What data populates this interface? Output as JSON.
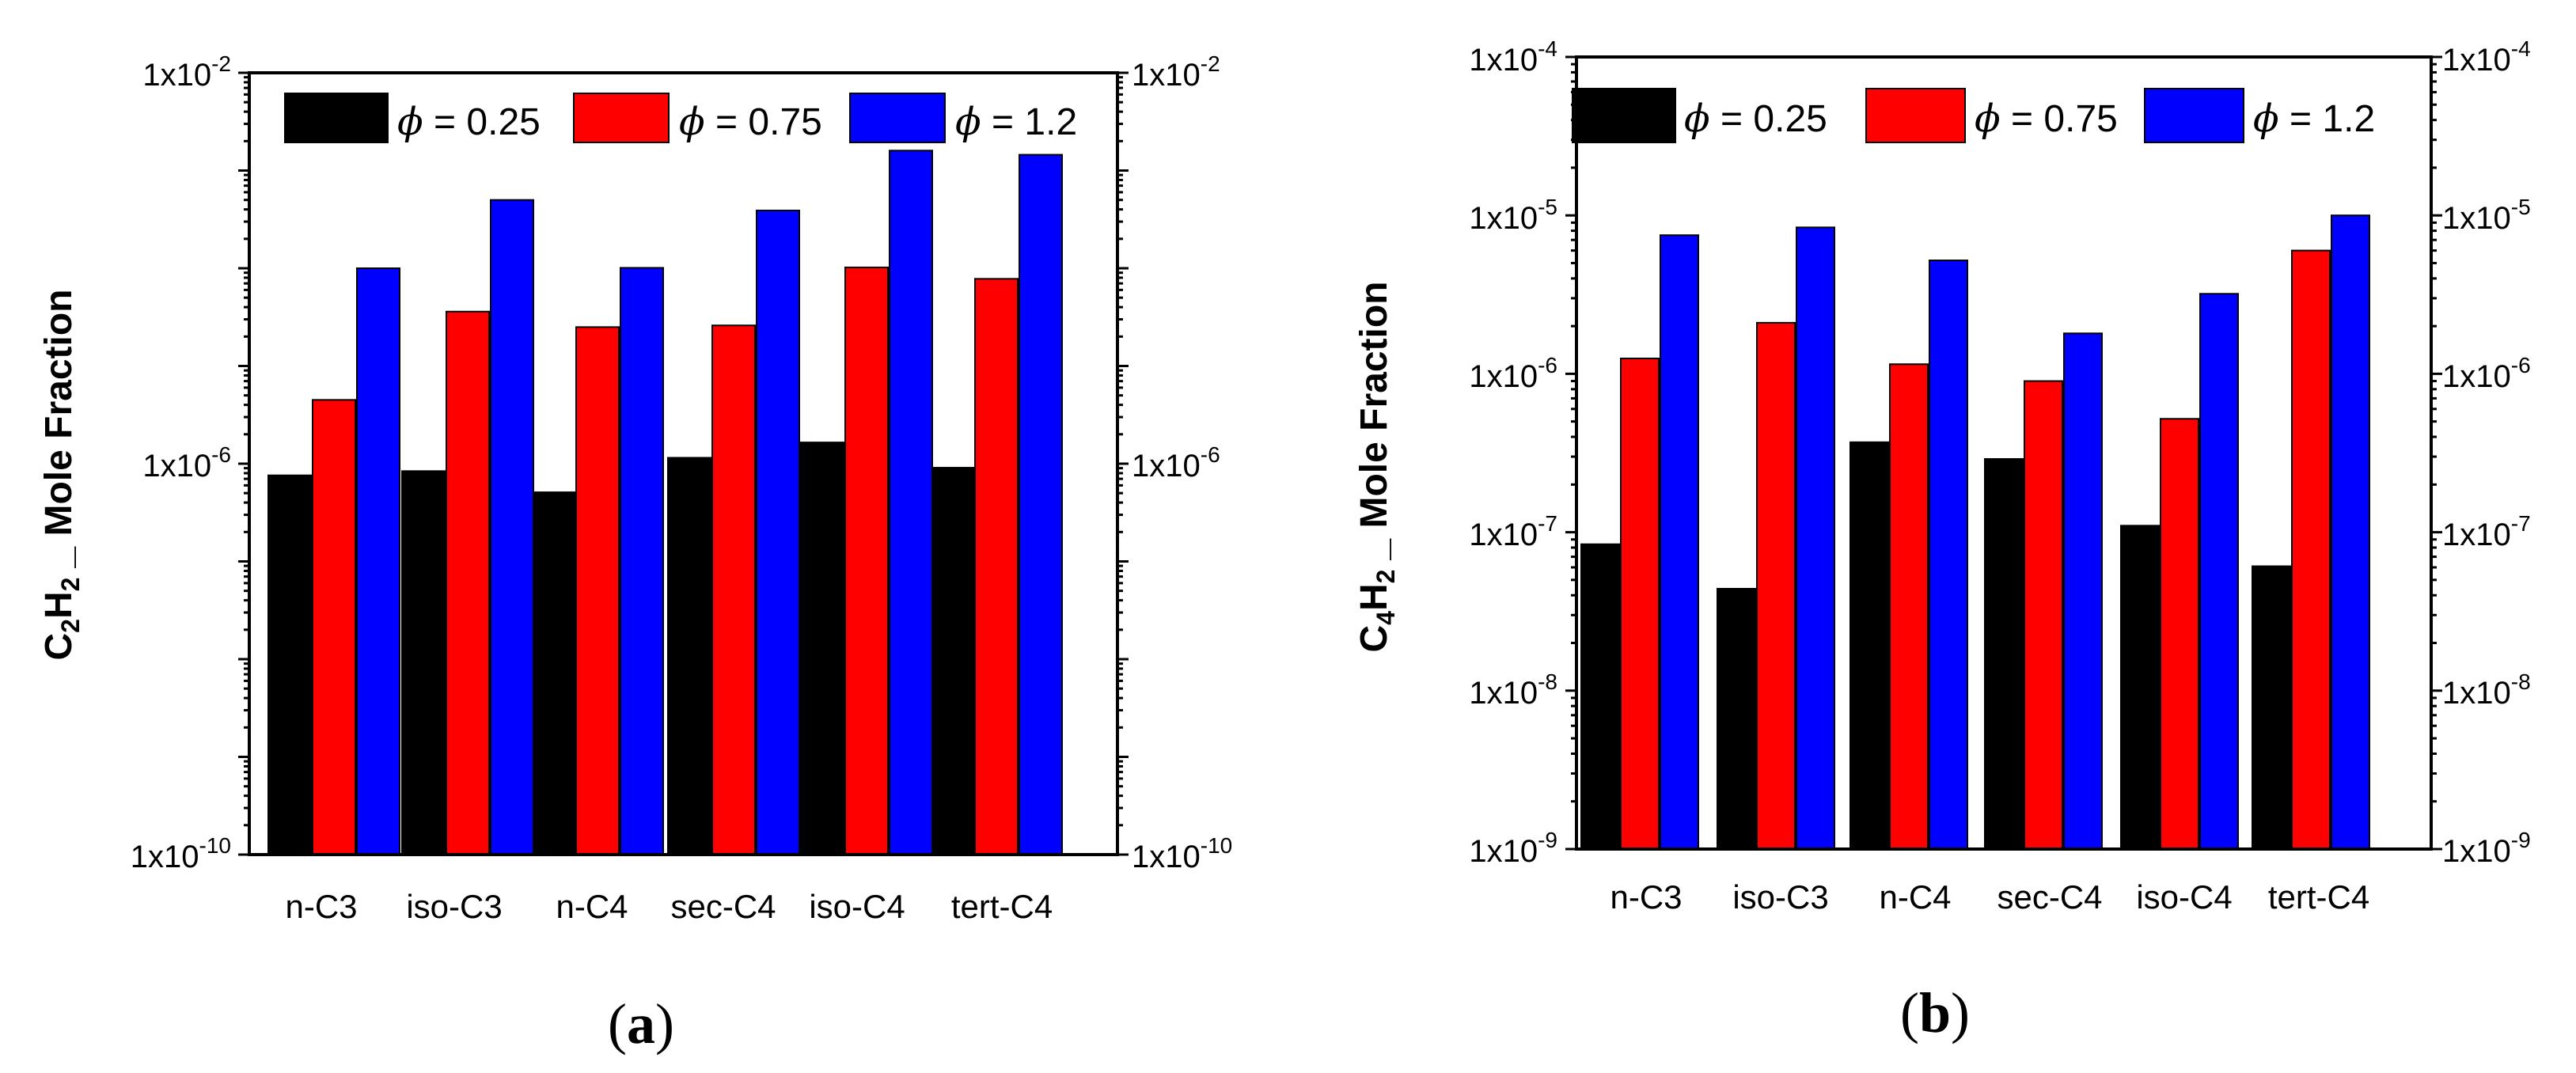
{
  "colors": {
    "series": [
      "#000000",
      "#ff0000",
      "#0000ff"
    ]
  },
  "chart_data": [
    {
      "type": "bar",
      "panel_label": "a",
      "y_scale": "log",
      "ylabel_species": {
        "c1": "C",
        "n1": "2",
        "c2": "H",
        "n2": "2"
      },
      "ylabel_suffix": "_ Mole Fraction",
      "yticks": [
        {
          "mant": "1x10",
          "exp": "-10"
        },
        {
          "mant": "1x10",
          "exp": "-6"
        },
        {
          "mant": "1x10",
          "exp": "-2"
        }
      ],
      "ylim_exp": [
        -10,
        -2
      ],
      "categories": [
        "n-C3",
        "iso-C3",
        "n-C4",
        "sec-C4",
        "iso-C4",
        "tert-C4"
      ],
      "series": [
        {
          "name": "ϕ = 0.25",
          "phi": "ϕ",
          "rest": " = 0.25",
          "values": [
            7.6e-07,
            8.4e-07,
            5.1e-07,
            1.15e-06,
            1.65e-06,
            9.1e-07
          ]
        },
        {
          "name": "ϕ = 0.75",
          "phi": "ϕ",
          "rest": " = 0.75",
          "values": [
            4.5e-06,
            3.6e-05,
            2.5e-05,
            2.6e-05,
            0.000102,
            7.8e-05
          ]
        },
        {
          "name": "ϕ = 1.2",
          "phi": "ϕ",
          "rest": " = 1.2",
          "values": [
            0.0001,
            0.0005,
            0.000101,
            0.00039,
            0.0016,
            0.00145
          ]
        }
      ],
      "legend_position": "top"
    },
    {
      "type": "bar",
      "panel_label": "b",
      "y_scale": "log",
      "ylabel_species": {
        "c1": "C",
        "n1": "4",
        "c2": "H",
        "n2": "2"
      },
      "ylabel_suffix": "_ Mole Fraction",
      "yticks": [
        {
          "mant": "1x10",
          "exp": "-9"
        },
        {
          "mant": "1x10",
          "exp": "-8"
        },
        {
          "mant": "1x10",
          "exp": "-7"
        },
        {
          "mant": "1x10",
          "exp": "-6"
        },
        {
          "mant": "1x10",
          "exp": "-5"
        },
        {
          "mant": "1x10",
          "exp": "-4"
        }
      ],
      "ylim_exp": [
        -9,
        -4
      ],
      "categories": [
        "n-C3",
        "iso-C3",
        "n-C4",
        "sec-C4",
        "iso-C4",
        "tert-C4"
      ],
      "series": [
        {
          "name": "ϕ = 0.25",
          "phi": "ϕ",
          "rest": " = 0.25",
          "values": [
            8.4e-08,
            4.4e-08,
            3.7e-07,
            2.9e-07,
            1.1e-07,
            6.1e-08
          ]
        },
        {
          "name": "ϕ = 0.75",
          "phi": "ϕ",
          "rest": " = 0.75",
          "values": [
            1.25e-06,
            2.1e-06,
            1.15e-06,
            9e-07,
            5.2e-07,
            6e-06
          ]
        },
        {
          "name": "ϕ = 1.2",
          "phi": "ϕ",
          "rest": " = 1.2",
          "values": [
            7.5e-06,
            8.4e-06,
            5.2e-06,
            1.8e-06,
            3.2e-06,
            1e-05
          ]
        }
      ],
      "legend_position": "top"
    }
  ]
}
